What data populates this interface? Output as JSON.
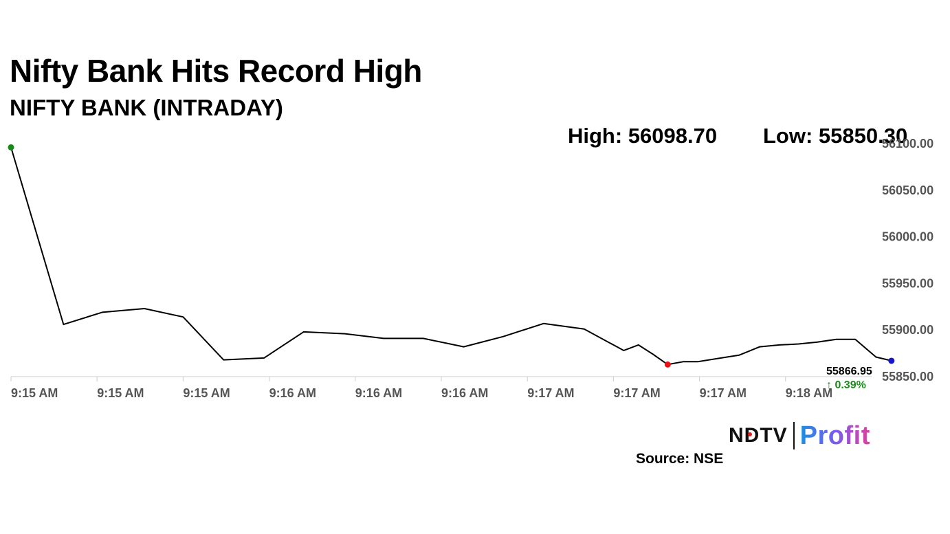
{
  "chart_data": {
    "type": "line",
    "title": "Nifty Bank Hits Record High",
    "subtitle": "NIFTY BANK (INTRADAY)",
    "high_label": "High: 56098.70",
    "low_label": "Low: 55850.30",
    "source": "Source: NSE",
    "brand": {
      "primary": "NDTV",
      "secondary": "Profit"
    },
    "x_tick_labels": [
      "9:15 AM",
      "9:15 AM",
      "9:15 AM",
      "9:16 AM",
      "9:16 AM",
      "9:16 AM",
      "9:17 AM",
      "9:17 AM",
      "9:17 AM",
      "9:18 AM"
    ],
    "y_tick_labels": [
      "56100.00",
      "56050.00",
      "56000.00",
      "55950.00",
      "55900.00",
      "55850.00"
    ],
    "y_ticks": [
      56100,
      56050,
      56000,
      55950,
      55900,
      55850
    ],
    "ylim": [
      55850,
      56100
    ],
    "x_range": [
      0,
      10
    ],
    "series": [
      {
        "values": [
          [
            0.0,
            56096
          ],
          [
            0.61,
            55906
          ],
          [
            1.06,
            55919
          ],
          [
            1.55,
            55923
          ],
          [
            2.0,
            55914
          ],
          [
            2.47,
            55868
          ],
          [
            2.94,
            55870
          ],
          [
            3.4,
            55898
          ],
          [
            3.88,
            55896
          ],
          [
            4.33,
            55891
          ],
          [
            4.79,
            55891
          ],
          [
            5.26,
            55882
          ],
          [
            5.72,
            55893
          ],
          [
            6.19,
            55907
          ],
          [
            6.66,
            55901
          ],
          [
            7.12,
            55878
          ],
          [
            7.29,
            55884
          ],
          [
            7.46,
            55874
          ],
          [
            7.63,
            55863
          ],
          [
            7.81,
            55866
          ],
          [
            7.98,
            55866
          ],
          [
            8.25,
            55870
          ],
          [
            8.46,
            55873
          ],
          [
            8.7,
            55882
          ],
          [
            8.93,
            55884
          ],
          [
            9.15,
            55885
          ],
          [
            9.37,
            55887
          ],
          [
            9.59,
            55890
          ],
          [
            9.81,
            55890
          ],
          [
            10.05,
            55871
          ],
          [
            10.23,
            55867
          ]
        ]
      }
    ],
    "marker_high": {
      "x": 0.0,
      "y": 56096
    },
    "marker_low": {
      "x": 7.63,
      "y": 55863
    },
    "marker_last": {
      "x": 10.23,
      "y": 55867
    },
    "last_value_label": "55866.95",
    "change_label": "↑ 0.39%",
    "colors": {
      "line": "#000000",
      "high_marker": "#1a8a1a",
      "low_marker": "#ee1111",
      "last_marker": "#1515cc",
      "change": "#1a8a1a",
      "axis": "#cccccc",
      "tick_text": "#555555"
    },
    "grid": false
  }
}
